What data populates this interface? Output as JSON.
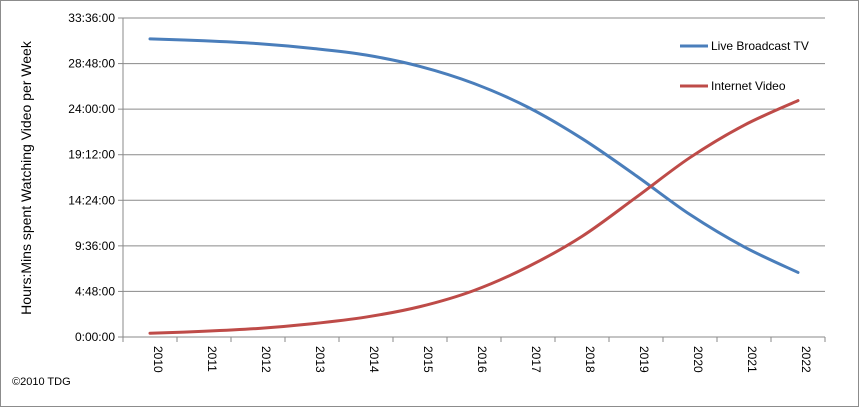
{
  "chart_data": {
    "type": "line",
    "title": "",
    "xlabel": "",
    "ylabel": "Hours:Mins spent Watching Video per Week",
    "x": [
      "2010",
      "2011",
      "2012",
      "2013",
      "2014",
      "2015",
      "2016",
      "2017",
      "2018",
      "2019",
      "2020",
      "2021",
      "2022"
    ],
    "y_ticks": [
      "0:00:00",
      "4:48:00",
      "9:36:00",
      "14:24:00",
      "19:12:00",
      "24:00:00",
      "28:48:00",
      "33:36:00"
    ],
    "y_unit": "hours",
    "ylim": [
      0,
      33.6
    ],
    "grid": true,
    "legend_position": "top-right",
    "series": [
      {
        "name": "Live Broadcast TV",
        "color": "#4a7ebb",
        "values": [
          31.4,
          31.2,
          30.9,
          30.4,
          29.7,
          28.5,
          26.7,
          24.2,
          20.9,
          17.0,
          12.9,
          9.5,
          6.8
        ]
      },
      {
        "name": "Internet Video",
        "color": "#be4b48",
        "values": [
          0.4,
          0.6,
          0.9,
          1.4,
          2.1,
          3.2,
          4.9,
          7.4,
          10.6,
          14.7,
          18.9,
          22.3,
          24.9
        ]
      }
    ]
  },
  "copyright": "©2010 TDG"
}
